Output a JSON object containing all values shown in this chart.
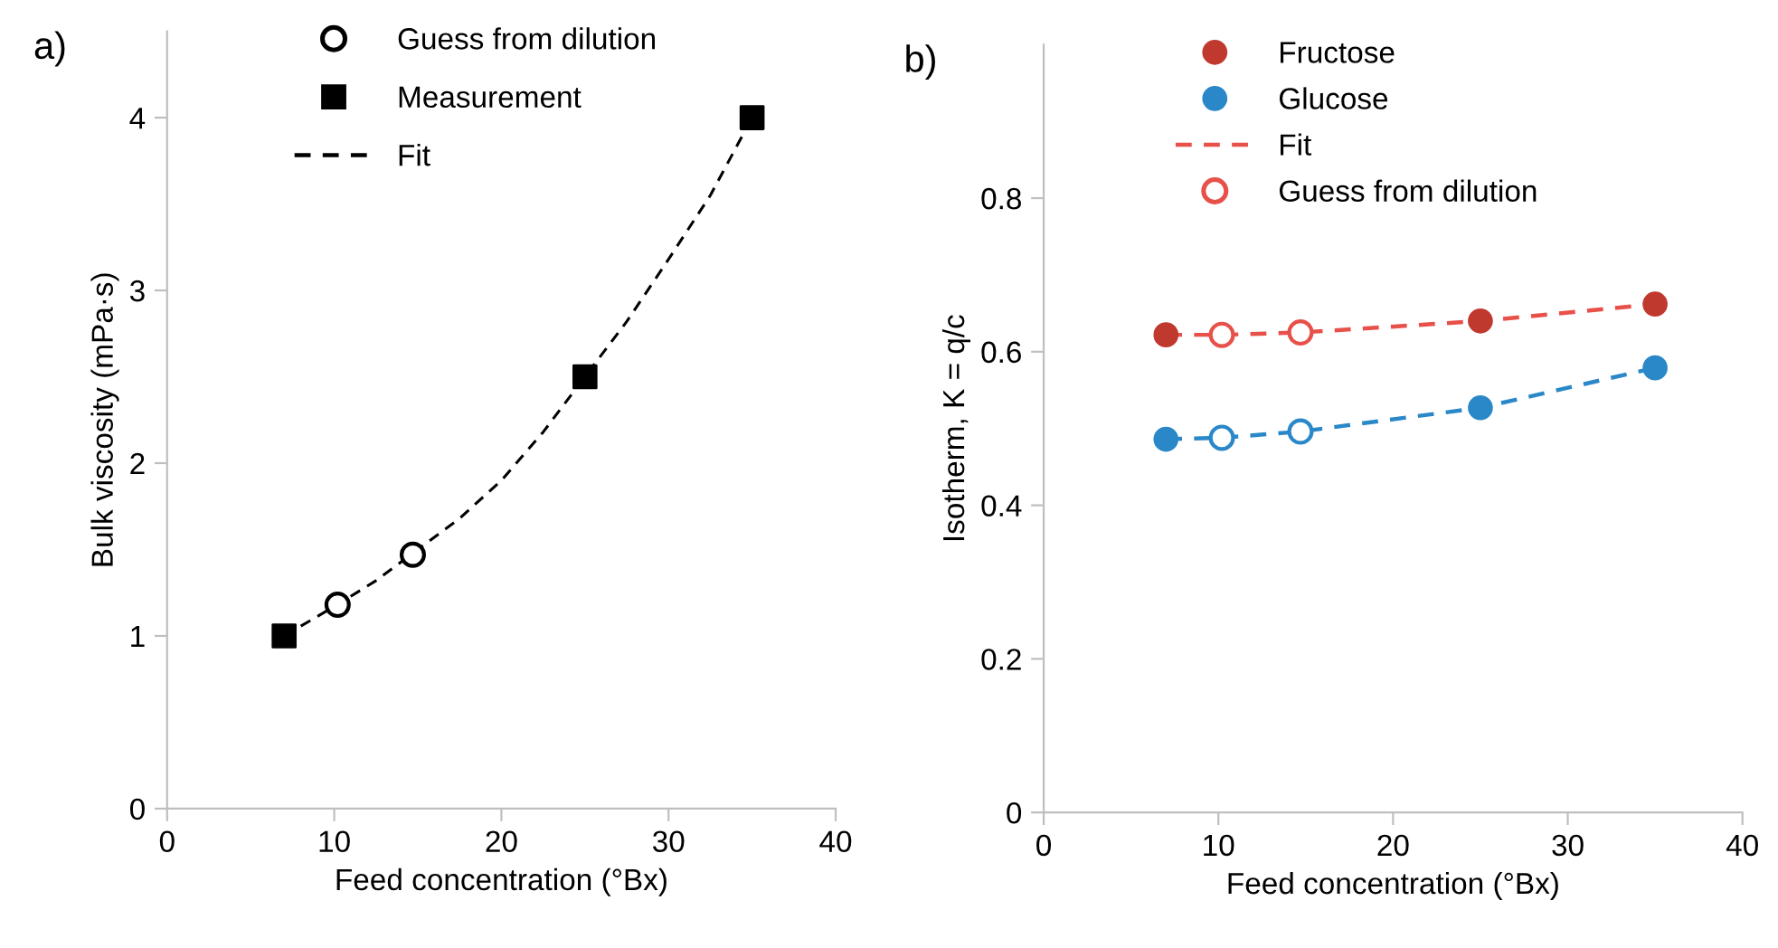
{
  "chart_data": [
    {
      "type": "scatter",
      "title": "a)",
      "xlabel": "Feed concentration (°Bx)",
      "ylabel": "Bulk viscosity (mPa·s)",
      "xlim": [
        0,
        40
      ],
      "xticks": [
        0,
        10,
        20,
        30,
        40
      ],
      "ylim": [
        0,
        4.5
      ],
      "yticks": [
        0,
        1,
        2,
        3,
        4
      ],
      "grid": false,
      "legend": "top left",
      "series": [
        {
          "name": "Guess from dilution",
          "marker": "circle-open",
          "color": "#000000",
          "x": [
            10.2,
            14.7
          ],
          "values": [
            1.18,
            1.47
          ]
        },
        {
          "name": "Measurement",
          "marker": "square",
          "color": "#000000",
          "x": [
            7,
            25,
            35
          ],
          "values": [
            1.0,
            2.5,
            4.0
          ]
        },
        {
          "name": "Fit",
          "type": "line",
          "line_style": "dashed",
          "marker": "none",
          "color": "#000000",
          "x": [
            7,
            10,
            12.5,
            15,
            17.5,
            20,
            22.5,
            25,
            27.5,
            30,
            32.5,
            35
          ],
          "values": [
            1.0,
            1.17,
            1.32,
            1.5,
            1.68,
            1.9,
            2.18,
            2.5,
            2.82,
            3.18,
            3.55,
            4.0
          ]
        }
      ]
    },
    {
      "type": "scatter",
      "title": "b)",
      "xlabel": "Feed concentration (°Bx)",
      "ylabel": "Isotherm, K = q/c",
      "xlim": [
        0,
        40
      ],
      "xticks": [
        0,
        10,
        20,
        30,
        40
      ],
      "ylim": [
        0,
        1.0
      ],
      "yticks": [
        0,
        0.2,
        0.4,
        0.6,
        0.8
      ],
      "grid": false,
      "legend": "top left",
      "series": [
        {
          "name": "Fructose",
          "marker": "circle",
          "color": "#c0392f",
          "x": [
            7,
            25,
            35
          ],
          "values": [
            0.622,
            0.64,
            0.662
          ]
        },
        {
          "name": "Glucose",
          "marker": "circle",
          "color": "#2a88c8",
          "x": [
            7,
            25,
            35
          ],
          "values": [
            0.486,
            0.527,
            0.579
          ]
        },
        {
          "name": "Fit",
          "type": "line",
          "line_style": "dashed",
          "marker": "none",
          "color": "#e8504a",
          "x": [
            7,
            10.2,
            14.7,
            25,
            35
          ],
          "values": [
            0.622,
            0.622,
            0.625,
            0.64,
            0.662
          ]
        },
        {
          "type": "line",
          "line_style": "dashed",
          "marker": "none",
          "color": "#2a88c8",
          "x": [
            7,
            10.2,
            14.7,
            25,
            35
          ],
          "values": [
            0.486,
            0.488,
            0.496,
            0.527,
            0.579
          ]
        },
        {
          "name": "Guess from dilution",
          "marker": "circle-open",
          "color": "#e8504a",
          "x": [
            10.2,
            14.7
          ],
          "values": [
            0.622,
            0.625
          ]
        },
        {
          "marker": "circle-open",
          "color": "#2a88c8",
          "x": [
            10.2,
            14.7
          ],
          "values": [
            0.488,
            0.496
          ]
        }
      ]
    }
  ]
}
